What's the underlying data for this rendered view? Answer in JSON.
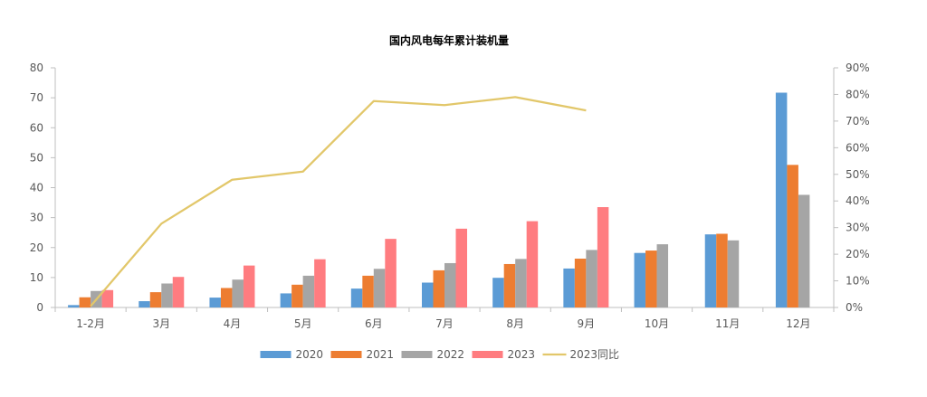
{
  "chart_data": {
    "type": "bar",
    "title": "国内风电每年累计装机量",
    "categories": [
      "1-2月",
      "3月",
      "4月",
      "5月",
      "6月",
      "7月",
      "8月",
      "9月",
      "10月",
      "11月",
      "12月"
    ],
    "series": [
      {
        "name": "2020",
        "type": "bar",
        "axis": "left",
        "color": "#5B9BD5",
        "values": [
          0.8,
          2.1,
          3.3,
          4.7,
          6.3,
          8.3,
          9.9,
          13.0,
          18.2,
          24.4,
          71.7
        ]
      },
      {
        "name": "2021",
        "type": "bar",
        "axis": "left",
        "color": "#ED7D31",
        "values": [
          3.4,
          5.1,
          6.5,
          7.6,
          10.6,
          12.4,
          14.5,
          16.3,
          19.0,
          24.6,
          47.6
        ]
      },
      {
        "name": "2022",
        "type": "bar",
        "axis": "left",
        "color": "#A5A5A5",
        "values": [
          5.5,
          8.0,
          9.3,
          10.6,
          12.9,
          14.8,
          16.2,
          19.2,
          21.1,
          22.4,
          37.6
        ]
      },
      {
        "name": "2023",
        "type": "bar",
        "axis": "left",
        "color": "#FF7C80",
        "values": [
          5.8,
          10.2,
          14.0,
          16.1,
          22.9,
          26.3,
          28.8,
          33.5,
          null,
          null,
          null
        ]
      },
      {
        "name": "2023同比",
        "type": "line",
        "axis": "right",
        "color": "#E2C76A",
        "values": [
          0.5,
          31.5,
          48.0,
          51.0,
          77.5,
          76.0,
          79.0,
          74.0,
          null,
          null,
          null
        ]
      }
    ],
    "ylim_left": [
      0,
      80
    ],
    "yticks_left": [
      "0",
      "10",
      "20",
      "30",
      "40",
      "50",
      "60",
      "70",
      "80"
    ],
    "ylim_right": [
      0,
      90
    ],
    "yticks_right": [
      "0%",
      "10%",
      "20%",
      "30%",
      "40%",
      "50%",
      "60%",
      "70%",
      "80%",
      "90%"
    ],
    "grid": false,
    "legend_position": "bottom"
  }
}
